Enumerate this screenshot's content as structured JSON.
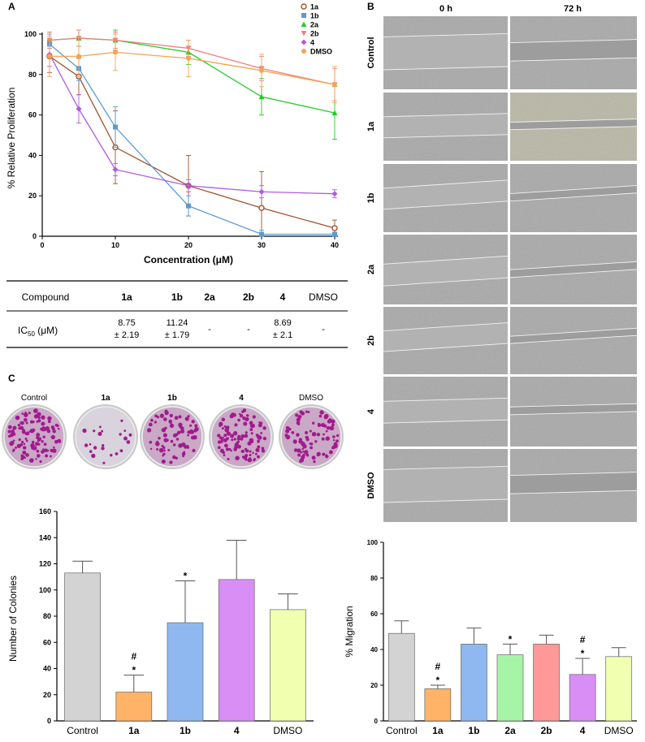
{
  "panels": {
    "A": {
      "letter": "A",
      "chart_data": {
        "type": "line",
        "xlabel": "Concentration (μM)",
        "ylabel": "% Relative Proliferation",
        "xlim": [
          0,
          40
        ],
        "ylim": [
          0,
          100
        ],
        "xticks": [
          0,
          10,
          20,
          30,
          40
        ],
        "yticks": [
          0,
          20,
          40,
          60,
          80,
          100
        ],
        "x": [
          1,
          5,
          10,
          20,
          30,
          40
        ],
        "legend_position": "top-right",
        "series": [
          {
            "name": "1a",
            "color": "#a0522d",
            "marker": "open-circle",
            "values": [
              89,
              79,
              44,
              25,
              14,
              4
            ],
            "errors": [
              8,
              9,
              18,
              15,
              18,
              4
            ]
          },
          {
            "name": "1b",
            "color": "#5b9bd5",
            "marker": "square",
            "values": [
              95,
              83,
              54,
              15,
              1,
              1
            ],
            "errors": [
              5,
              6,
              10,
              5,
              2,
              1
            ]
          },
          {
            "name": "2a",
            "color": "#22cc22",
            "marker": "triangle",
            "values": [
              97,
              98,
              97,
              91,
              69,
              61
            ],
            "errors": [
              4,
              4,
              5,
              6,
              9,
              13
            ]
          },
          {
            "name": "2b",
            "color": "#f08080",
            "marker": "triangle-down",
            "values": [
              97,
              98,
              97,
              93,
              83,
              75
            ],
            "errors": [
              4,
              4,
              4,
              4,
              6,
              8
            ]
          },
          {
            "name": "4",
            "color": "#b05be0",
            "marker": "diamond",
            "values": [
              90,
              63,
              33,
              25,
              22,
              21
            ],
            "errors": [
              6,
              7,
              3,
              3,
              3,
              2
            ]
          },
          {
            "name": "DMSO",
            "color": "#f5a450",
            "marker": "circle",
            "values": [
              89,
              89,
              91,
              88,
              82,
              75
            ],
            "errors": [
              10,
              10,
              9,
              9,
              8,
              9
            ]
          }
        ]
      }
    },
    "table": {
      "headers": [
        "Compound",
        "1a",
        "1b",
        "2a",
        "2b",
        "4",
        "DMSO"
      ],
      "row_label_main": "IC",
      "row_label_sub": "50",
      "row_label_unit": " (μM)",
      "cells": [
        {
          "line1": "8.75",
          "line2": "± 2.19"
        },
        {
          "line1": "11.24",
          "line2": "± 1.79"
        },
        {
          "line1": "-",
          "line2": ""
        },
        {
          "line1": "-",
          "line2": ""
        },
        {
          "line1": "8.69",
          "line2": "± 2.1"
        },
        {
          "line1": "-",
          "line2": ""
        }
      ]
    },
    "B": {
      "letter": "B",
      "col_headers": [
        "0 h",
        "72 h"
      ],
      "rows": [
        "Control",
        "1a",
        "1b",
        "2a",
        "2b",
        "4",
        "DMSO"
      ]
    },
    "C": {
      "letter": "C",
      "dish_labels": [
        "Control",
        "1a",
        "1b",
        "4",
        "DMSO"
      ],
      "dish_colony_counts": [
        113,
        22,
        75,
        108,
        85
      ],
      "chart_data": {
        "type": "bar",
        "categories": [
          "Control",
          "1a",
          "1b",
          "4",
          "DMSO"
        ],
        "values": [
          113,
          22,
          75,
          108,
          85
        ],
        "errors": [
          9,
          13,
          32,
          30,
          12
        ],
        "colors": [
          "#d3d3d3",
          "#ffb366",
          "#8fb8f0",
          "#d98ef5",
          "#f0ffb0"
        ],
        "annotations": [
          {
            "category": "1a",
            "lines": [
              "#",
              "*"
            ]
          },
          {
            "category": "1b",
            "lines": [
              "*"
            ]
          }
        ],
        "xlabel": "",
        "ylabel": "Number of Colonies",
        "ylim": [
          0,
          160
        ],
        "yticks": [
          0,
          20,
          40,
          60,
          80,
          100,
          120,
          140,
          160
        ]
      }
    },
    "D": {
      "chart_data": {
        "type": "bar",
        "categories": [
          "Control",
          "1a",
          "1b",
          "2a",
          "2b",
          "4",
          "DMSO"
        ],
        "values": [
          49,
          18,
          43,
          37,
          43,
          26,
          36
        ],
        "errors": [
          7,
          2,
          9,
          6,
          5,
          9,
          5
        ],
        "colors": [
          "#d3d3d3",
          "#ffb366",
          "#8fb8f0",
          "#a6f5a6",
          "#ff9999",
          "#d98ef5",
          "#f0ffb0"
        ],
        "annotations": [
          {
            "category": "1a",
            "lines": [
              "#",
              "*"
            ]
          },
          {
            "category": "2a",
            "lines": [
              "*"
            ]
          },
          {
            "category": "4",
            "lines": [
              "#",
              "*"
            ]
          }
        ],
        "xlabel": "",
        "ylabel": "% Migration",
        "ylim": [
          0,
          100
        ],
        "yticks": [
          0,
          20,
          40,
          60,
          80,
          100
        ]
      }
    }
  }
}
